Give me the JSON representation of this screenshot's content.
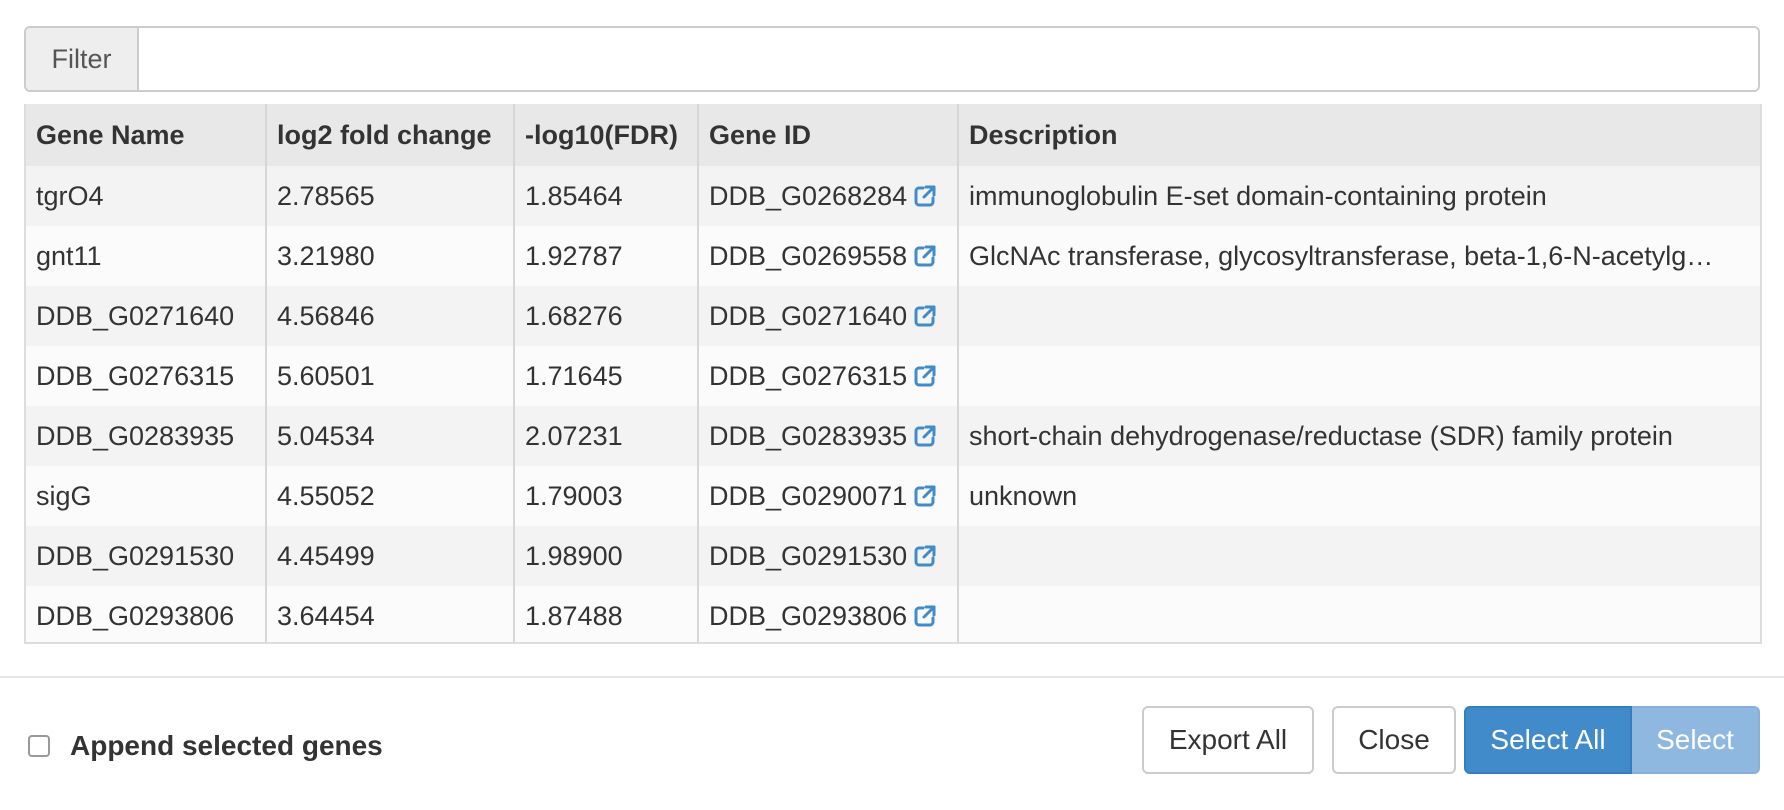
{
  "filter": {
    "label": "Filter",
    "value": "",
    "placeholder": ""
  },
  "table": {
    "columns": [
      "Gene Name",
      "log2 fold change",
      "-log10(FDR)",
      "Gene ID",
      "Description"
    ],
    "rows": [
      {
        "gene_name": "tgrO4",
        "log2fc": "2.78565",
        "fdr": "1.85464",
        "gene_id": "DDB_G0268284",
        "description": "immunoglobulin E-set domain-containing protein"
      },
      {
        "gene_name": "gnt11",
        "log2fc": "3.21980",
        "fdr": "1.92787",
        "gene_id": "DDB_G0269558",
        "description": "GlcNAc transferase, glycosyltransferase, beta-1,6-N-acetylg…"
      },
      {
        "gene_name": "DDB_G0271640",
        "log2fc": "4.56846",
        "fdr": "1.68276",
        "gene_id": "DDB_G0271640",
        "description": ""
      },
      {
        "gene_name": "DDB_G0276315",
        "log2fc": "5.60501",
        "fdr": "1.71645",
        "gene_id": "DDB_G0276315",
        "description": ""
      },
      {
        "gene_name": "DDB_G0283935",
        "log2fc": "5.04534",
        "fdr": "2.07231",
        "gene_id": "DDB_G0283935",
        "description": "short-chain dehydrogenase/reductase (SDR) family protein"
      },
      {
        "gene_name": "sigG",
        "log2fc": "4.55052",
        "fdr": "1.79003",
        "gene_id": "DDB_G0290071",
        "description": "unknown"
      },
      {
        "gene_name": "DDB_G0291530",
        "log2fc": "4.45499",
        "fdr": "1.98900",
        "gene_id": "DDB_G0291530",
        "description": ""
      },
      {
        "gene_name": "DDB_G0293806",
        "log2fc": "3.64454",
        "fdr": "1.87488",
        "gene_id": "DDB_G0293806",
        "description": ""
      }
    ],
    "link_icon": "external-link-icon",
    "link_color": "#428bca"
  },
  "footer": {
    "append_label": "Append selected genes",
    "append_checked": false,
    "export_all_label": "Export All",
    "close_label": "Close",
    "select_all_label": "Select All",
    "select_label": "Select"
  },
  "colors": {
    "primary": "#428bca",
    "primary_disabled": "#8fb8e0",
    "header_bg": "#e8e8e8",
    "row_odd": "#f3f3f3",
    "row_even": "#fbfbfb"
  }
}
